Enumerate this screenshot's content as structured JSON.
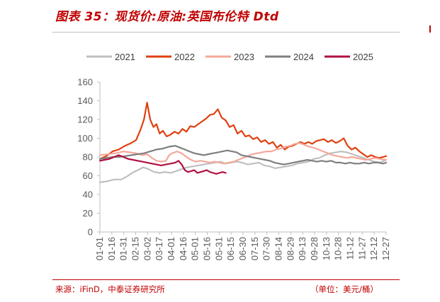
{
  "header": {
    "title": "图表 35：现货价:原油:英国布伦特 Dtd"
  },
  "footer": {
    "source": "来源：iFinD，中泰证券研究所",
    "unit": "（单位：美元/桶）"
  },
  "chart_data": {
    "type": "line",
    "title": "图表 35：现货价:原油:英国布伦特 Dtd",
    "xlabel": "",
    "ylabel": "",
    "ylim": [
      0,
      160
    ],
    "yticks": [
      0,
      20,
      40,
      60,
      80,
      100,
      120,
      140,
      160
    ],
    "grid": false,
    "legend_position": "top",
    "xticks": [
      "01-01",
      "01-16",
      "01-31",
      "02-15",
      "03-02",
      "03-17",
      "04-01",
      "04-16",
      "05-01",
      "05-16",
      "05-31",
      "06-15",
      "06-30",
      "07-15",
      "07-30",
      "08-14",
      "08-29",
      "09-13",
      "09-28",
      "10-13",
      "10-28",
      "11-12",
      "11-27",
      "12-12",
      "12-27"
    ],
    "series": [
      {
        "name": "2021",
        "color": "#bfbfbf",
        "points": [
          [
            0,
            53
          ],
          [
            9,
            54
          ],
          [
            18,
            56
          ],
          [
            27,
            56
          ],
          [
            34,
            59
          ],
          [
            41,
            63
          ],
          [
            48,
            66
          ],
          [
            55,
            69
          ],
          [
            62,
            67
          ],
          [
            69,
            64
          ],
          [
            76,
            63
          ],
          [
            83,
            64
          ],
          [
            90,
            63
          ],
          [
            97,
            65
          ],
          [
            104,
            67
          ],
          [
            111,
            69
          ],
          [
            118,
            70
          ],
          [
            125,
            71
          ],
          [
            132,
            72
          ],
          [
            139,
            73
          ],
          [
            146,
            74
          ],
          [
            153,
            75
          ],
          [
            160,
            73
          ],
          [
            167,
            74
          ],
          [
            174,
            75
          ],
          [
            181,
            74
          ],
          [
            188,
            72
          ],
          [
            195,
            73
          ],
          [
            202,
            74
          ],
          [
            209,
            71
          ],
          [
            216,
            70
          ],
          [
            223,
            68
          ],
          [
            230,
            69
          ],
          [
            237,
            70
          ],
          [
            244,
            71
          ],
          [
            251,
            73
          ],
          [
            258,
            74
          ],
          [
            265,
            75
          ],
          [
            272,
            78
          ],
          [
            279,
            79
          ],
          [
            286,
            82
          ],
          [
            293,
            84
          ],
          [
            300,
            85
          ],
          [
            307,
            86
          ],
          [
            314,
            85
          ],
          [
            321,
            83
          ],
          [
            328,
            81
          ],
          [
            335,
            79
          ],
          [
            342,
            77
          ],
          [
            349,
            75
          ],
          [
            356,
            74
          ],
          [
            364,
            77
          ]
        ]
      },
      {
        "name": "2022",
        "color": "#e0400f",
        "points": [
          [
            0,
            78
          ],
          [
            8,
            81
          ],
          [
            16,
            86
          ],
          [
            24,
            88
          ],
          [
            32,
            92
          ],
          [
            40,
            95
          ],
          [
            46,
            98
          ],
          [
            52,
            110
          ],
          [
            56,
            120
          ],
          [
            60,
            138
          ],
          [
            64,
            120
          ],
          [
            68,
            112
          ],
          [
            72,
            115
          ],
          [
            76,
            105
          ],
          [
            80,
            108
          ],
          [
            85,
            102
          ],
          [
            90,
            104
          ],
          [
            95,
            107
          ],
          [
            100,
            105
          ],
          [
            105,
            110
          ],
          [
            110,
            107
          ],
          [
            115,
            113
          ],
          [
            120,
            112
          ],
          [
            125,
            115
          ],
          [
            130,
            118
          ],
          [
            135,
            121
          ],
          [
            140,
            125
          ],
          [
            145,
            126
          ],
          [
            150,
            131
          ],
          [
            155,
            122
          ],
          [
            160,
            119
          ],
          [
            165,
            112
          ],
          [
            170,
            114
          ],
          [
            175,
            105
          ],
          [
            180,
            108
          ],
          [
            185,
            102
          ],
          [
            190,
            103
          ],
          [
            195,
            99
          ],
          [
            200,
            101
          ],
          [
            205,
            96
          ],
          [
            210,
            98
          ],
          [
            215,
            94
          ],
          [
            220,
            96
          ],
          [
            225,
            90
          ],
          [
            230,
            93
          ],
          [
            235,
            88
          ],
          [
            240,
            91
          ],
          [
            245,
            92
          ],
          [
            250,
            94
          ],
          [
            255,
            96
          ],
          [
            260,
            94
          ],
          [
            265,
            96
          ],
          [
            270,
            94
          ],
          [
            275,
            97
          ],
          [
            280,
            98
          ],
          [
            285,
            99
          ],
          [
            290,
            96
          ],
          [
            295,
            98
          ],
          [
            300,
            95
          ],
          [
            305,
            97
          ],
          [
            310,
            100
          ],
          [
            315,
            92
          ],
          [
            320,
            88
          ],
          [
            325,
            90
          ],
          [
            330,
            86
          ],
          [
            335,
            83
          ],
          [
            340,
            80
          ],
          [
            345,
            82
          ],
          [
            350,
            80
          ],
          [
            355,
            79
          ],
          [
            360,
            80
          ],
          [
            364,
            81
          ]
        ]
      },
      {
        "name": "2023",
        "color": "#f4a89a",
        "points": [
          [
            0,
            82
          ],
          [
            10,
            83
          ],
          [
            20,
            84
          ],
          [
            30,
            86
          ],
          [
            38,
            85
          ],
          [
            46,
            84
          ],
          [
            54,
            82
          ],
          [
            60,
            83
          ],
          [
            66,
            79
          ],
          [
            72,
            76
          ],
          [
            78,
            75
          ],
          [
            84,
            76
          ],
          [
            88,
            82
          ],
          [
            92,
            84
          ],
          [
            98,
            86
          ],
          [
            104,
            84
          ],
          [
            110,
            80
          ],
          [
            116,
            77
          ],
          [
            122,
            75
          ],
          [
            128,
            76
          ],
          [
            134,
            75
          ],
          [
            140,
            74
          ],
          [
            146,
            75
          ],
          [
            152,
            74
          ],
          [
            158,
            73
          ],
          [
            164,
            74
          ],
          [
            170,
            75
          ],
          [
            176,
            77
          ],
          [
            182,
            79
          ],
          [
            188,
            81
          ],
          [
            194,
            83
          ],
          [
            200,
            84
          ],
          [
            206,
            85
          ],
          [
            212,
            86
          ],
          [
            218,
            86
          ],
          [
            224,
            88
          ],
          [
            230,
            89
          ],
          [
            236,
            91
          ],
          [
            242,
            92
          ],
          [
            248,
            94
          ],
          [
            254,
            95
          ],
          [
            260,
            93
          ],
          [
            266,
            91
          ],
          [
            272,
            90
          ],
          [
            278,
            88
          ],
          [
            284,
            86
          ],
          [
            290,
            84
          ],
          [
            296,
            82
          ],
          [
            302,
            81
          ],
          [
            308,
            80
          ],
          [
            314,
            79
          ],
          [
            320,
            80
          ],
          [
            326,
            79
          ],
          [
            332,
            78
          ],
          [
            338,
            77
          ],
          [
            344,
            78
          ],
          [
            350,
            79
          ],
          [
            356,
            78
          ],
          [
            364,
            77
          ]
        ]
      },
      {
        "name": "2024",
        "color": "#7f7f7f",
        "points": [
          [
            0,
            78
          ],
          [
            8,
            79
          ],
          [
            16,
            80
          ],
          [
            24,
            80
          ],
          [
            32,
            81
          ],
          [
            40,
            82
          ],
          [
            48,
            83
          ],
          [
            56,
            84
          ],
          [
            64,
            86
          ],
          [
            72,
            88
          ],
          [
            80,
            89
          ],
          [
            88,
            91
          ],
          [
            96,
            92
          ],
          [
            102,
            90
          ],
          [
            108,
            88
          ],
          [
            114,
            86
          ],
          [
            120,
            84
          ],
          [
            126,
            83
          ],
          [
            132,
            82
          ],
          [
            138,
            83
          ],
          [
            144,
            84
          ],
          [
            150,
            85
          ],
          [
            156,
            86
          ],
          [
            162,
            87
          ],
          [
            168,
            86
          ],
          [
            174,
            85
          ],
          [
            180,
            82
          ],
          [
            186,
            81
          ],
          [
            192,
            80
          ],
          [
            198,
            79
          ],
          [
            204,
            78
          ],
          [
            210,
            77
          ],
          [
            216,
            76
          ],
          [
            222,
            74
          ],
          [
            228,
            73
          ],
          [
            234,
            72
          ],
          [
            240,
            73
          ],
          [
            246,
            74
          ],
          [
            252,
            75
          ],
          [
            258,
            76
          ],
          [
            264,
            77
          ],
          [
            270,
            76
          ],
          [
            276,
            75
          ],
          [
            282,
            76
          ],
          [
            288,
            75
          ],
          [
            294,
            76
          ],
          [
            300,
            74
          ],
          [
            306,
            74
          ],
          [
            312,
            73
          ],
          [
            318,
            74
          ],
          [
            324,
            73
          ],
          [
            330,
            73
          ],
          [
            336,
            74
          ],
          [
            342,
            73
          ],
          [
            348,
            74
          ],
          [
            354,
            74
          ],
          [
            360,
            73
          ],
          [
            364,
            74
          ]
        ]
      },
      {
        "name": "2025",
        "color": "#b01040",
        "points": [
          [
            0,
            76
          ],
          [
            6,
            77
          ],
          [
            12,
            78
          ],
          [
            18,
            80
          ],
          [
            24,
            82
          ],
          [
            30,
            80
          ],
          [
            36,
            78
          ],
          [
            42,
            77
          ],
          [
            48,
            76
          ],
          [
            54,
            75
          ],
          [
            60,
            74
          ],
          [
            66,
            73
          ],
          [
            72,
            72
          ],
          [
            78,
            71
          ],
          [
            84,
            72
          ],
          [
            90,
            73
          ],
          [
            96,
            74
          ],
          [
            100,
            76
          ],
          [
            104,
            72
          ],
          [
            108,
            66
          ],
          [
            112,
            64
          ],
          [
            116,
            65
          ],
          [
            120,
            66
          ],
          [
            124,
            63
          ],
          [
            128,
            64
          ],
          [
            132,
            65
          ],
          [
            136,
            66
          ],
          [
            140,
            64
          ],
          [
            144,
            63
          ],
          [
            148,
            62
          ],
          [
            152,
            63
          ],
          [
            156,
            64
          ],
          [
            160,
            63
          ]
        ]
      }
    ]
  }
}
